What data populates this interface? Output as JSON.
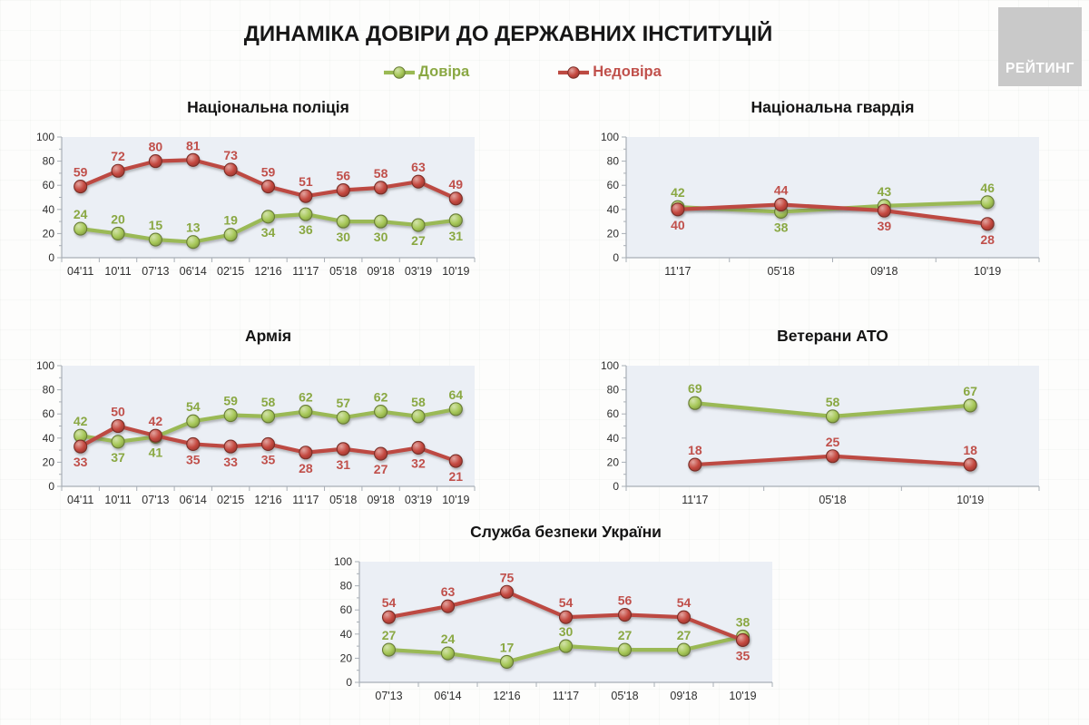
{
  "header": {
    "title": "ДИНАМІКА ДОВІРИ ДО ДЕРЖАВНИХ ІНСТИТУЦІЙ",
    "logo": "РЕЙТИНГ"
  },
  "legend": {
    "trust": "Довіра",
    "distrust": "Недовіра"
  },
  "colors": {
    "trust_line": "#9ab954",
    "trust_marker": "#a6c757",
    "trust_label": "#8aa843",
    "distrust_line": "#bd4a42",
    "distrust_marker": "#c4483f",
    "distrust_label": "#c0504b",
    "plot_bg": "#ebeff5",
    "axis": "#a8aeb6",
    "tick_text": "#2e2e2e"
  },
  "chart_data": [
    {
      "type": "line",
      "title": "Національна поліція",
      "categories": [
        "04'11",
        "10'11",
        "07'13",
        "06'14",
        "02'15",
        "12'16",
        "11'17",
        "05'18",
        "09'18",
        "03'19",
        "10'19"
      ],
      "ylim": [
        0,
        100
      ],
      "yticks": [
        0,
        20,
        40,
        60,
        80,
        100
      ],
      "grid": false,
      "series": [
        {
          "name": "Довіра",
          "color_key": "trust",
          "values": [
            24,
            20,
            15,
            13,
            19,
            34,
            36,
            30,
            30,
            27,
            31
          ],
          "label_pos": [
            "above",
            "above",
            "above",
            "above",
            "above",
            "below",
            "below",
            "below",
            "below",
            "below",
            "below"
          ]
        },
        {
          "name": "Недовіра",
          "color_key": "distrust",
          "values": [
            59,
            72,
            80,
            81,
            73,
            59,
            51,
            56,
            58,
            63,
            49
          ],
          "label_pos": [
            "above",
            "above",
            "above",
            "above",
            "above",
            "above",
            "above",
            "above",
            "above",
            "above",
            "above"
          ]
        }
      ]
    },
    {
      "type": "line",
      "title": "Національна гвардія",
      "categories": [
        "11'17",
        "05'18",
        "09'18",
        "10'19"
      ],
      "ylim": [
        0,
        100
      ],
      "yticks": [
        0,
        20,
        40,
        60,
        80,
        100
      ],
      "grid": false,
      "series": [
        {
          "name": "Довіра",
          "color_key": "trust",
          "values": [
            42,
            38,
            43,
            46
          ],
          "label_pos": [
            "above",
            "below",
            "above",
            "above"
          ]
        },
        {
          "name": "Недовіра",
          "color_key": "distrust",
          "values": [
            40,
            44,
            39,
            28
          ],
          "label_pos": [
            "below",
            "above",
            "below",
            "below"
          ]
        }
      ]
    },
    {
      "type": "line",
      "title": "Армія",
      "categories": [
        "04'11",
        "10'11",
        "07'13",
        "06'14",
        "02'15",
        "12'16",
        "11'17",
        "05'18",
        "09'18",
        "03'19",
        "10'19"
      ],
      "ylim": [
        0,
        100
      ],
      "yticks": [
        0,
        20,
        40,
        60,
        80,
        100
      ],
      "grid": false,
      "series": [
        {
          "name": "Довіра",
          "color_key": "trust",
          "values": [
            42,
            37,
            41,
            54,
            59,
            58,
            62,
            57,
            62,
            58,
            64
          ],
          "label_pos": [
            "above",
            "below",
            "below",
            "above",
            "above",
            "above",
            "above",
            "above",
            "above",
            "above",
            "above"
          ]
        },
        {
          "name": "Недовіра",
          "color_key": "distrust",
          "values": [
            33,
            50,
            42,
            35,
            33,
            35,
            28,
            31,
            27,
            32,
            21
          ],
          "label_pos": [
            "below",
            "above",
            "above",
            "below",
            "below",
            "below",
            "below",
            "below",
            "below",
            "below",
            "below"
          ]
        }
      ]
    },
    {
      "type": "line",
      "title": "Ветерани АТО",
      "categories": [
        "11'17",
        "05'18",
        "10'19"
      ],
      "ylim": [
        0,
        100
      ],
      "yticks": [
        0,
        20,
        40,
        60,
        80,
        100
      ],
      "grid": false,
      "series": [
        {
          "name": "Довіра",
          "color_key": "trust",
          "values": [
            69,
            58,
            67
          ],
          "label_pos": [
            "above",
            "above",
            "above"
          ]
        },
        {
          "name": "Недовіра",
          "color_key": "distrust",
          "values": [
            18,
            25,
            18
          ],
          "label_pos": [
            "above",
            "above",
            "above"
          ]
        }
      ]
    },
    {
      "type": "line",
      "title": "Служба безпеки України",
      "categories": [
        "07'13",
        "06'14",
        "12'16",
        "11'17",
        "05'18",
        "09'18",
        "10'19"
      ],
      "ylim": [
        0,
        100
      ],
      "yticks": [
        0,
        20,
        40,
        60,
        80,
        100
      ],
      "grid": false,
      "series": [
        {
          "name": "Довіра",
          "color_key": "trust",
          "values": [
            27,
            24,
            17,
            30,
            27,
            27,
            38
          ],
          "label_pos": [
            "above",
            "above",
            "above",
            "above",
            "above",
            "above",
            "above"
          ]
        },
        {
          "name": "Недовіра",
          "color_key": "distrust",
          "values": [
            54,
            63,
            75,
            54,
            56,
            54,
            35
          ],
          "label_pos": [
            "above",
            "above",
            "above",
            "above",
            "above",
            "above",
            "below"
          ]
        }
      ]
    }
  ]
}
